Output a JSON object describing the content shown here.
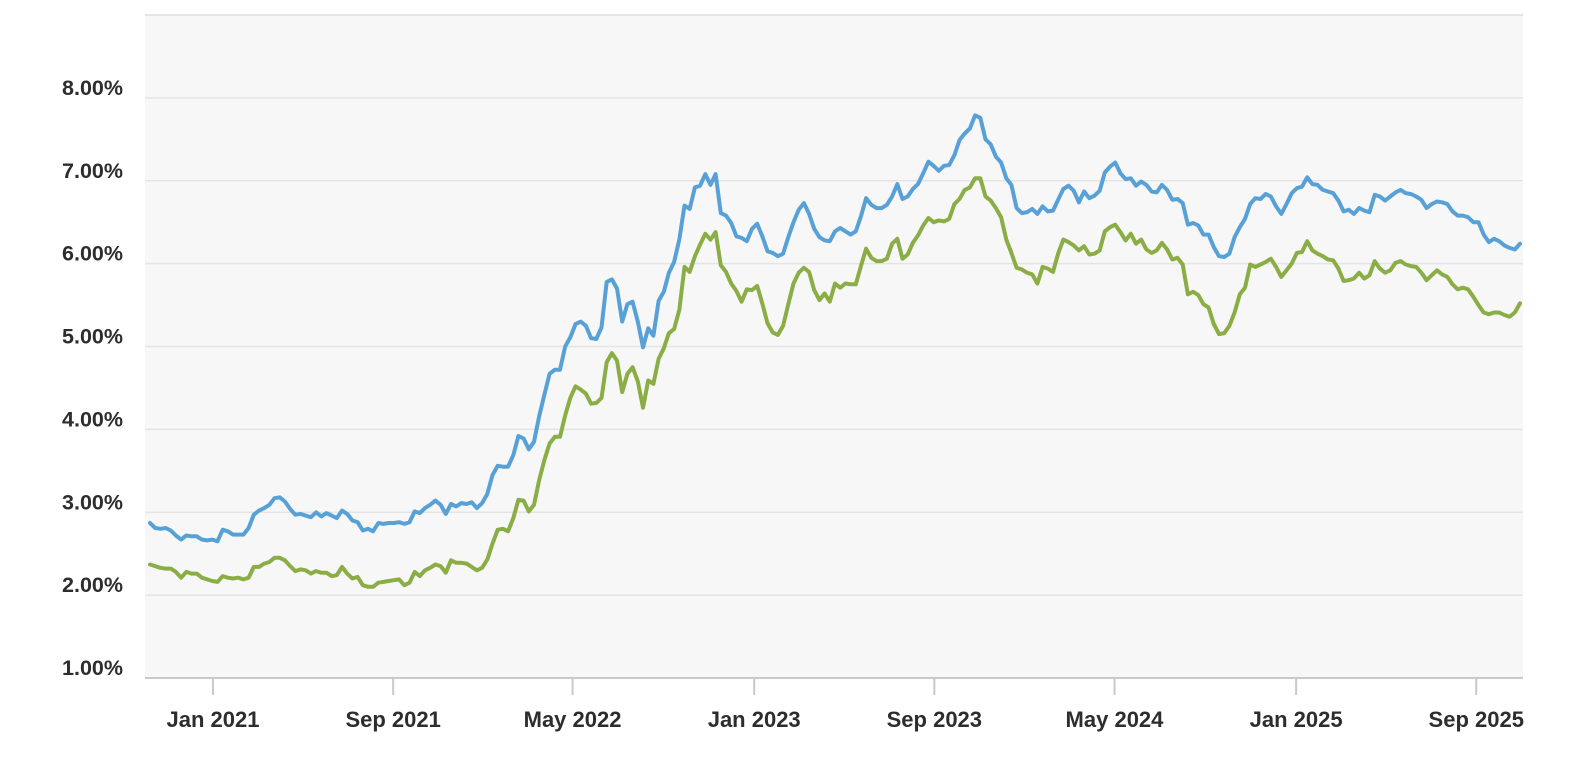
{
  "colors": {
    "page_background": "#ffffff",
    "plot_background": "#f7f7f7",
    "gridline": "#e4e4e4",
    "top_border": "#dedede",
    "axis_line": "#c9c9c9",
    "tick_mark": "#c9c9c9",
    "label_text": "#2d2d2d",
    "blue_line": "#57a1d7",
    "green_line": "#8bad45"
  },
  "chart_data": {
    "type": "line",
    "title": "",
    "xlabel": "",
    "ylabel": "",
    "legend": "none",
    "grid": "horizontal",
    "x_start_date": "2020-10-08",
    "x_interval_days": 7,
    "x_ticks": [
      {
        "label": "Jan 2021",
        "date": "2021-01-01"
      },
      {
        "label": "Sep 2021",
        "date": "2021-09-01"
      },
      {
        "label": "May 2022",
        "date": "2022-05-01"
      },
      {
        "label": "Jan 2023",
        "date": "2023-01-01"
      },
      {
        "label": "Sep 2023",
        "date": "2023-09-01"
      },
      {
        "label": "May 2024",
        "date": "2024-05-01"
      },
      {
        "label": "Jan 2025",
        "date": "2025-01-01"
      },
      {
        "label": "Sep 2025",
        "date": "2025-09-01"
      }
    ],
    "y_axis": {
      "unit": "%",
      "range": [
        1.0,
        9.0
      ],
      "tick_values": [
        8,
        7,
        6,
        5,
        4,
        3,
        2,
        1
      ],
      "tick_labels": [
        "8.00%",
        "7.00%",
        "6.00%",
        "5.00%",
        "4.00%",
        "3.00%",
        "2.00%",
        "1.00%"
      ]
    },
    "series": [
      {
        "name": "blue",
        "color": "#57a1d7",
        "values_weekly_by_year": [
          [
            2.87,
            2.81,
            2.8,
            2.81,
            2.78,
            2.72,
            2.67,
            2.72,
            2.71,
            2.71,
            2.67,
            2.66,
            2.67
          ],
          [
            2.65,
            2.79,
            2.77,
            2.73,
            2.73,
            2.73,
            2.81,
            2.97,
            3.02,
            3.05,
            3.09,
            3.17,
            3.18,
            3.13,
            3.04,
            2.97,
            2.98,
            2.96,
            2.94,
            3.0,
            2.95,
            2.99,
            2.96,
            2.93,
            3.02,
            2.98,
            2.9,
            2.88,
            2.78,
            2.8,
            2.77,
            2.87,
            2.86,
            2.87,
            2.87,
            2.88,
            2.86,
            2.88,
            3.01,
            2.99,
            3.05,
            3.09,
            3.14,
            3.09,
            2.98,
            3.1,
            3.07,
            3.11,
            3.1,
            3.12,
            3.05,
            3.11
          ],
          [
            3.22,
            3.45,
            3.56,
            3.55,
            3.55,
            3.69,
            3.92,
            3.89,
            3.76,
            3.85,
            4.16,
            4.42,
            4.67,
            4.72,
            4.72,
            5.0,
            5.11,
            5.27,
            5.3,
            5.25,
            5.1,
            5.09,
            5.23,
            5.78,
            5.81,
            5.7,
            5.3,
            5.51,
            5.54,
            5.3,
            4.99,
            5.22,
            5.13,
            5.55,
            5.66,
            5.89,
            6.02,
            6.29,
            6.7,
            6.66,
            6.92,
            6.94,
            7.08,
            6.95,
            7.08,
            6.61,
            6.58,
            6.49,
            6.33,
            6.31,
            6.27,
            6.42
          ],
          [
            6.48,
            6.33,
            6.15,
            6.13,
            6.09,
            6.12,
            6.32,
            6.5,
            6.65,
            6.73,
            6.6,
            6.42,
            6.32,
            6.28,
            6.27,
            6.39,
            6.43,
            6.39,
            6.35,
            6.39,
            6.57,
            6.79,
            6.71,
            6.67,
            6.67,
            6.71,
            6.81,
            6.96,
            6.78,
            6.81,
            6.9,
            6.96,
            7.09,
            7.23,
            7.18,
            7.12,
            7.18,
            7.19,
            7.31,
            7.49,
            7.57,
            7.63,
            7.79,
            7.76,
            7.5,
            7.44,
            7.29,
            7.22,
            7.03,
            6.95,
            6.67,
            6.61
          ],
          [
            6.62,
            6.66,
            6.6,
            6.69,
            6.63,
            6.64,
            6.77,
            6.9,
            6.94,
            6.88,
            6.74,
            6.87,
            6.79,
            6.82,
            6.88,
            7.1,
            7.17,
            7.22,
            7.09,
            7.02,
            7.03,
            6.94,
            6.99,
            6.95,
            6.87,
            6.86,
            6.95,
            6.89,
            6.77,
            6.78,
            6.73,
            6.47,
            6.49,
            6.46,
            6.35,
            6.35,
            6.2,
            6.09,
            6.08,
            6.12,
            6.32,
            6.44,
            6.54,
            6.72,
            6.79,
            6.78,
            6.84,
            6.81,
            6.69,
            6.6,
            6.72,
            6.85
          ],
          [
            6.91,
            6.93,
            7.04,
            6.96,
            6.95,
            6.89,
            6.87,
            6.85,
            6.76,
            6.63,
            6.65,
            6.6,
            6.67,
            6.64,
            6.62,
            6.83,
            6.81,
            6.76,
            6.81,
            6.86,
            6.89,
            6.85,
            6.84,
            6.81,
            6.77,
            6.67,
            6.72,
            6.75,
            6.74,
            6.72,
            6.63,
            6.58,
            6.58,
            6.56,
            6.5,
            6.5,
            6.35,
            6.26,
            6.3,
            6.27,
            6.22,
            6.19,
            6.17,
            6.24
          ]
        ]
      },
      {
        "name": "green",
        "color": "#8bad45",
        "values_weekly_by_year": [
          [
            2.37,
            2.35,
            2.33,
            2.32,
            2.32,
            2.28,
            2.21,
            2.28,
            2.26,
            2.26,
            2.21,
            2.19,
            2.17
          ],
          [
            2.16,
            2.23,
            2.21,
            2.2,
            2.21,
            2.19,
            2.21,
            2.34,
            2.34,
            2.38,
            2.4,
            2.45,
            2.45,
            2.42,
            2.35,
            2.29,
            2.31,
            2.3,
            2.26,
            2.29,
            2.27,
            2.27,
            2.23,
            2.24,
            2.34,
            2.26,
            2.2,
            2.22,
            2.12,
            2.1,
            2.1,
            2.15,
            2.16,
            2.17,
            2.18,
            2.19,
            2.12,
            2.15,
            2.28,
            2.23,
            2.3,
            2.33,
            2.37,
            2.35,
            2.27,
            2.42,
            2.39,
            2.39,
            2.38,
            2.34,
            2.3,
            2.33
          ],
          [
            2.43,
            2.62,
            2.79,
            2.8,
            2.77,
            2.93,
            3.15,
            3.14,
            3.01,
            3.09,
            3.39,
            3.63,
            3.83,
            3.91,
            3.91,
            4.17,
            4.38,
            4.52,
            4.48,
            4.43,
            4.31,
            4.32,
            4.38,
            4.81,
            4.92,
            4.83,
            4.45,
            4.67,
            4.75,
            4.58,
            4.26,
            4.59,
            4.55,
            4.85,
            4.98,
            5.16,
            5.21,
            5.44,
            5.96,
            5.9,
            6.09,
            6.23,
            6.36,
            6.29,
            6.38,
            5.98,
            5.9,
            5.76,
            5.67,
            5.54,
            5.69,
            5.68
          ],
          [
            5.73,
            5.52,
            5.28,
            5.17,
            5.14,
            5.25,
            5.51,
            5.76,
            5.89,
            5.95,
            5.9,
            5.68,
            5.56,
            5.64,
            5.54,
            5.76,
            5.71,
            5.76,
            5.75,
            5.75,
            5.97,
            6.18,
            6.07,
            6.03,
            6.03,
            6.06,
            6.24,
            6.3,
            6.06,
            6.11,
            6.25,
            6.34,
            6.46,
            6.55,
            6.5,
            6.52,
            6.51,
            6.54,
            6.72,
            6.78,
            6.89,
            6.92,
            7.03,
            7.03,
            6.81,
            6.76,
            6.67,
            6.56,
            6.29,
            6.13,
            5.95,
            5.93
          ],
          [
            5.89,
            5.87,
            5.76,
            5.96,
            5.94,
            5.9,
            6.12,
            6.29,
            6.26,
            6.22,
            6.16,
            6.21,
            6.11,
            6.12,
            6.16,
            6.39,
            6.44,
            6.47,
            6.38,
            6.28,
            6.36,
            6.24,
            6.29,
            6.17,
            6.13,
            6.16,
            6.25,
            6.17,
            6.05,
            6.07,
            5.99,
            5.63,
            5.66,
            5.62,
            5.51,
            5.47,
            5.27,
            5.15,
            5.16,
            5.25,
            5.41,
            5.63,
            5.71,
            5.99,
            5.96,
            5.99,
            6.02,
            6.06,
            5.96,
            5.84,
            5.92,
            6.0
          ],
          [
            6.13,
            6.14,
            6.27,
            6.16,
            6.12,
            6.09,
            6.05,
            6.04,
            5.94,
            5.79,
            5.8,
            5.82,
            5.89,
            5.82,
            5.86,
            6.03,
            5.94,
            5.89,
            5.92,
            6.01,
            6.03,
            5.99,
            5.97,
            5.96,
            5.89,
            5.8,
            5.86,
            5.92,
            5.87,
            5.84,
            5.75,
            5.69,
            5.71,
            5.69,
            5.6,
            5.5,
            5.41,
            5.39,
            5.41,
            5.41,
            5.38,
            5.36,
            5.41,
            5.52
          ]
        ]
      }
    ]
  }
}
